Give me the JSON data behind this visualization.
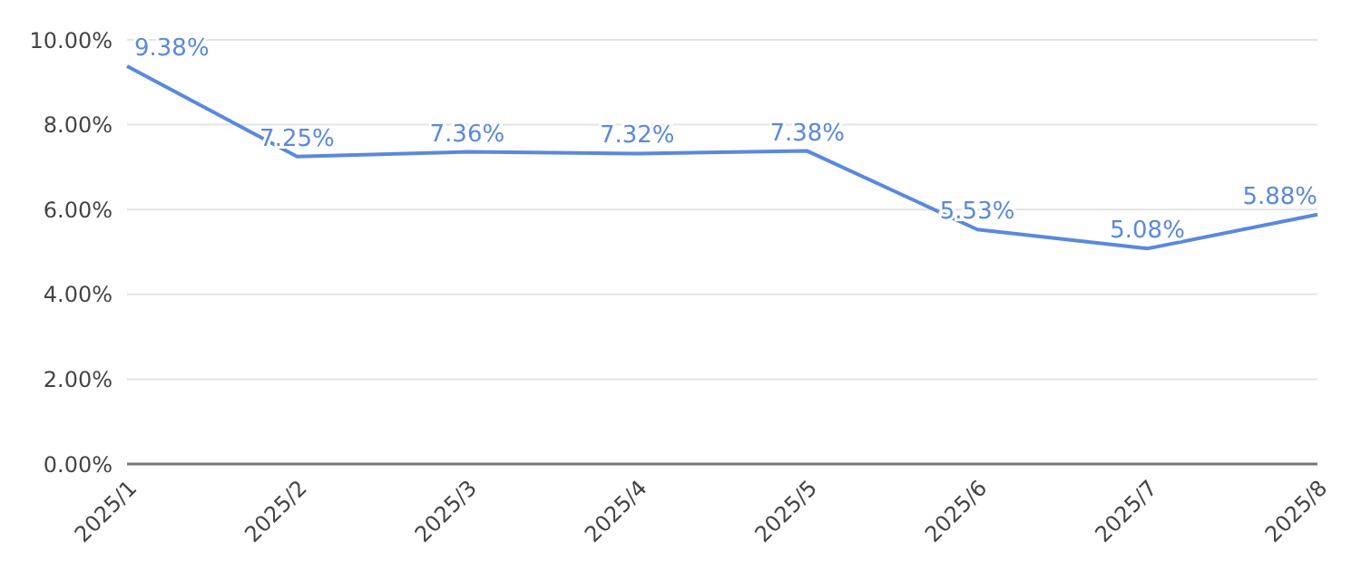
{
  "chart_data": {
    "type": "line",
    "categories": [
      "2025/1",
      "2025/2",
      "2025/3",
      "2025/4",
      "2025/5",
      "2025/6",
      "2025/7",
      "2025/8"
    ],
    "series": [
      {
        "color": "#5b88de",
        "values": [
          9.38,
          7.25,
          7.36,
          7.32,
          7.38,
          5.53,
          5.08,
          5.88
        ],
        "value_labels": [
          "9.38%",
          "7.25%",
          "7.36%",
          "7.32%",
          "7.38%",
          "5.53%",
          "5.08%",
          "5.88%"
        ]
      }
    ],
    "ylim": [
      0,
      10
    ],
    "yticks": [
      {
        "value": 0,
        "label": "0.00%"
      },
      {
        "value": 2,
        "label": "2.00%"
      },
      {
        "value": 4,
        "label": "4.00%"
      },
      {
        "value": 6,
        "label": "6.00%"
      },
      {
        "value": 8,
        "label": "8.00%"
      },
      {
        "value": 10,
        "label": "10.00%"
      }
    ],
    "grid": "y",
    "marker": "none",
    "line_style": "solid",
    "legend": false
  }
}
